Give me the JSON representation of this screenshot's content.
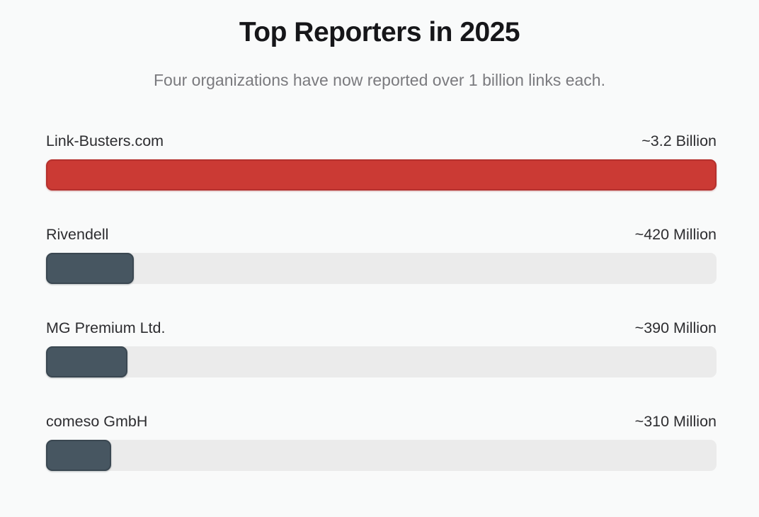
{
  "header": {
    "title": "Top Reporters in 2025",
    "subtitle": "Four organizations have now reported over 1 billion links each."
  },
  "colors": {
    "background": "#f9fafa",
    "title_text": "#161619",
    "subtitle_text": "#7a7a7e",
    "label_text": "#2d2d30",
    "highlight_bar": "#cb3a34",
    "bar": "#475661",
    "track": "#ebebeb"
  },
  "chart_data": {
    "type": "bar",
    "orientation": "horizontal",
    "title": "Top Reporters in 2025",
    "subtitle": "Four organizations have now reported over 1 billion links each.",
    "value_axis_max_millions": 3200,
    "grid": false,
    "legend": false,
    "rows": [
      {
        "label": "Link-Busters.com",
        "value_label": "~3.2 Billion",
        "value_millions": 3200,
        "highlight": true
      },
      {
        "label": "Rivendell",
        "value_label": "~420 Million",
        "value_millions": 420,
        "highlight": false
      },
      {
        "label": "MG Premium Ltd.",
        "value_label": "~390 Million",
        "value_millions": 390,
        "highlight": false
      },
      {
        "label": "comeso GmbH",
        "value_label": "~310 Million",
        "value_millions": 310,
        "highlight": false
      }
    ]
  }
}
